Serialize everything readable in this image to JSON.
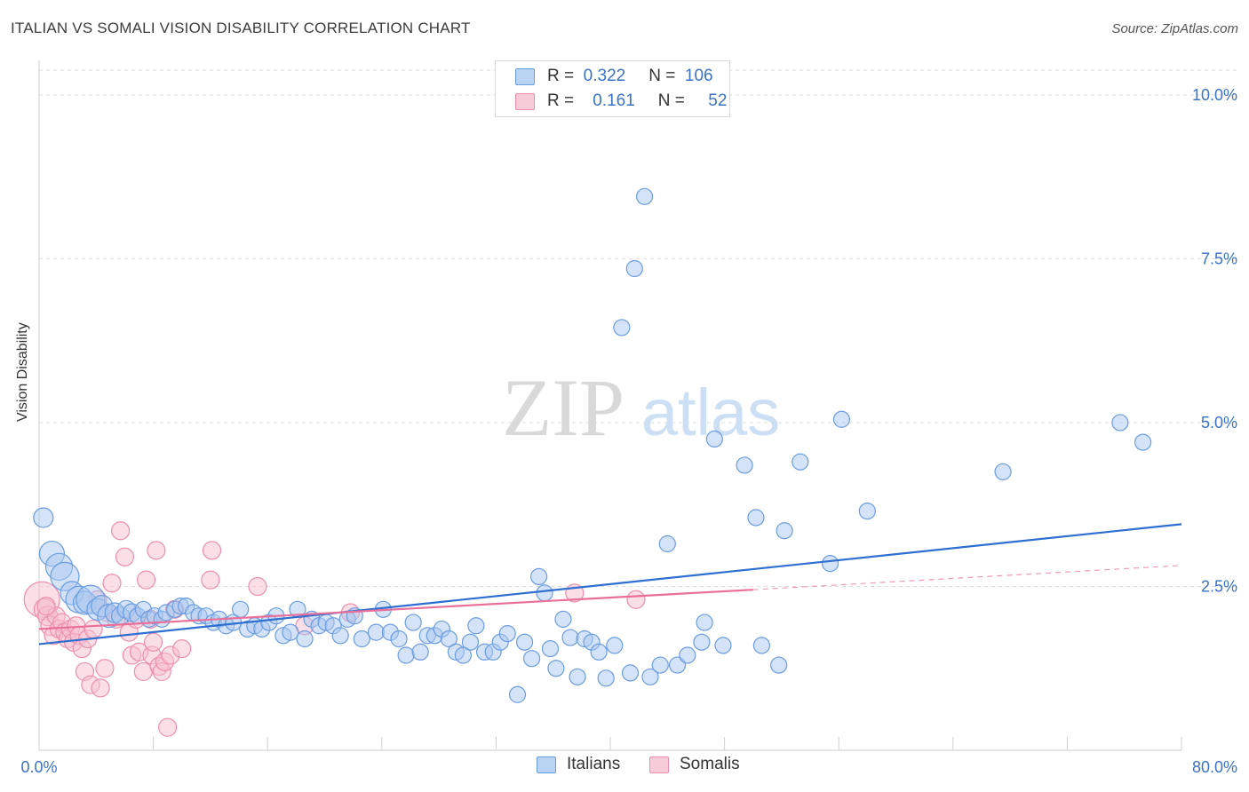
{
  "title": "ITALIAN VS SOMALI VISION DISABILITY CORRELATION CHART",
  "source": "Source: ZipAtlas.com",
  "watermark": {
    "zip": "ZIP",
    "atlas": "atlas"
  },
  "legend_top": [
    {
      "r_label": "R =",
      "r_value": "0.322",
      "n_label": "N =",
      "n_value": "106"
    },
    {
      "r_label": "R =",
      "r_value": "0.161",
      "n_label": "N =",
      "n_value": "52"
    }
  ],
  "legend_bottom": [
    "Italians",
    "Somalis"
  ],
  "colors": {
    "blue_fill": "#a9c8f0",
    "blue_stroke": "#6b9de0",
    "blue_line": "#2f6fd0",
    "pink_fill": "#f6bfd0",
    "pink_stroke": "#ec8fae",
    "pink_line": "#e8709a",
    "axis_text": "#3a73c6",
    "grid": "#dedede"
  },
  "chart_data": {
    "type": "scatter",
    "title": "ITALIAN VS SOMALI VISION DISABILITY CORRELATION CHART",
    "xlabel": "",
    "ylabel": "Vision Disability",
    "xlim": [
      0,
      80
    ],
    "ylim": [
      0,
      10.5
    ],
    "x_tick_labels": [
      "0.0%",
      "80.0%"
    ],
    "y_ticks": [
      2.5,
      5.0,
      7.5,
      10.0
    ],
    "y_tick_labels": [
      "2.5%",
      "5.0%",
      "7.5%",
      "10.0%"
    ],
    "grid": "horizontal dashed",
    "series": [
      {
        "name": "Italians",
        "trend": {
          "x": [
            0,
            80
          ],
          "y": [
            1.62,
            3.45
          ]
        },
        "points": [
          [
            0.3,
            3.55
          ],
          [
            0.9,
            3.0
          ],
          [
            1.4,
            2.8
          ],
          [
            1.8,
            2.65
          ],
          [
            2.3,
            2.4
          ],
          [
            2.8,
            2.3
          ],
          [
            3.2,
            2.25
          ],
          [
            3.6,
            2.3
          ],
          [
            4.1,
            2.15
          ],
          [
            4.4,
            2.2
          ],
          [
            4.9,
            2.05
          ],
          [
            5.3,
            2.1
          ],
          [
            5.7,
            2.05
          ],
          [
            6.1,
            2.15
          ],
          [
            6.5,
            2.1
          ],
          [
            6.9,
            2.05
          ],
          [
            7.3,
            2.15
          ],
          [
            7.7,
            2.0
          ],
          [
            8.1,
            2.05
          ],
          [
            8.6,
            2.0
          ],
          [
            8.9,
            2.1
          ],
          [
            9.5,
            2.15
          ],
          [
            9.9,
            2.2
          ],
          [
            10.3,
            2.2
          ],
          [
            10.8,
            2.1
          ],
          [
            11.2,
            2.05
          ],
          [
            11.7,
            2.05
          ],
          [
            12.2,
            1.95
          ],
          [
            12.6,
            2.0
          ],
          [
            13.1,
            1.9
          ],
          [
            13.6,
            1.95
          ],
          [
            14.1,
            2.15
          ],
          [
            14.6,
            1.85
          ],
          [
            15.1,
            1.9
          ],
          [
            15.6,
            1.85
          ],
          [
            16.1,
            1.95
          ],
          [
            16.6,
            2.05
          ],
          [
            17.1,
            1.75
          ],
          [
            17.6,
            1.8
          ],
          [
            18.1,
            2.15
          ],
          [
            18.6,
            1.7
          ],
          [
            19.1,
            2.0
          ],
          [
            19.6,
            1.9
          ],
          [
            20.1,
            1.95
          ],
          [
            20.6,
            1.9
          ],
          [
            21.1,
            1.75
          ],
          [
            21.6,
            2.0
          ],
          [
            22.1,
            2.05
          ],
          [
            22.6,
            1.7
          ],
          [
            23.6,
            1.8
          ],
          [
            24.1,
            2.15
          ],
          [
            24.6,
            1.8
          ],
          [
            25.2,
            1.7
          ],
          [
            25.7,
            1.45
          ],
          [
            26.2,
            1.95
          ],
          [
            26.7,
            1.5
          ],
          [
            27.2,
            1.75
          ],
          [
            27.7,
            1.75
          ],
          [
            28.2,
            1.85
          ],
          [
            28.7,
            1.7
          ],
          [
            29.2,
            1.5
          ],
          [
            29.7,
            1.45
          ],
          [
            30.2,
            1.65
          ],
          [
            30.6,
            1.9
          ],
          [
            31.2,
            1.5
          ],
          [
            31.8,
            1.5
          ],
          [
            32.3,
            1.65
          ],
          [
            32.8,
            1.78
          ],
          [
            33.5,
            0.85
          ],
          [
            34.0,
            1.65
          ],
          [
            34.5,
            1.4
          ],
          [
            35.0,
            2.65
          ],
          [
            35.4,
            2.4
          ],
          [
            35.8,
            1.55
          ],
          [
            36.2,
            1.25
          ],
          [
            36.7,
            2.0
          ],
          [
            37.2,
            1.72
          ],
          [
            37.7,
            1.12
          ],
          [
            38.2,
            1.7
          ],
          [
            38.7,
            1.65
          ],
          [
            39.2,
            1.5
          ],
          [
            39.7,
            1.1
          ],
          [
            40.3,
            1.6
          ],
          [
            40.8,
            6.45
          ],
          [
            41.4,
            1.18
          ],
          [
            41.7,
            7.35
          ],
          [
            42.8,
            1.12
          ],
          [
            43.5,
            1.3
          ],
          [
            44.0,
            3.15
          ],
          [
            44.7,
            1.3
          ],
          [
            45.4,
            1.45
          ],
          [
            46.6,
            1.95
          ],
          [
            47.3,
            4.75
          ],
          [
            46.4,
            1.65
          ],
          [
            47.9,
            1.6
          ],
          [
            49.4,
            4.35
          ],
          [
            50.2,
            3.55
          ],
          [
            50.6,
            1.6
          ],
          [
            51.8,
            1.3
          ],
          [
            52.2,
            3.35
          ],
          [
            53.3,
            4.4
          ],
          [
            55.4,
            2.85
          ],
          [
            56.2,
            5.05
          ],
          [
            58.0,
            3.65
          ],
          [
            67.5,
            4.25
          ],
          [
            75.7,
            5.0
          ],
          [
            77.3,
            4.7
          ],
          [
            42.4,
            8.45
          ]
        ],
        "sizes": [
          11,
          14,
          15,
          16,
          13,
          15,
          13,
          16,
          12,
          12,
          13,
          11,
          10,
          10,
          10,
          9,
          9,
          9,
          9,
          9,
          9,
          9,
          9,
          9,
          9,
          9,
          9,
          9,
          9,
          9,
          9,
          9,
          9,
          9,
          9,
          9,
          9,
          9,
          9,
          9,
          9,
          9,
          9,
          9,
          9,
          9,
          9,
          9,
          9,
          9,
          9,
          9,
          9,
          9,
          9,
          9,
          9,
          9,
          9,
          9,
          9,
          9,
          9,
          9,
          9,
          9,
          9,
          9,
          9,
          9,
          9,
          9,
          9,
          9,
          9,
          9,
          9,
          9,
          9,
          9,
          9,
          9,
          9,
          9,
          9,
          9,
          9,
          9,
          9,
          9,
          9,
          9,
          9,
          9,
          9,
          9,
          9,
          9,
          9,
          9,
          9,
          9,
          9,
          9,
          9,
          9
        ]
      },
      {
        "name": "Somalis",
        "trend": {
          "x": [
            0,
            50
          ],
          "y": [
            1.85,
            2.45
          ]
        },
        "trend_extension": {
          "x": [
            50,
            80
          ],
          "y": [
            2.45,
            2.82
          ]
        },
        "points": [
          [
            0.2,
            2.3
          ],
          [
            0.4,
            2.15
          ],
          [
            0.6,
            2.05
          ],
          [
            0.8,
            1.9
          ],
          [
            1.0,
            1.75
          ],
          [
            1.2,
            2.05
          ],
          [
            1.4,
            1.85
          ],
          [
            1.6,
            1.95
          ],
          [
            1.8,
            1.8
          ],
          [
            2.0,
            1.7
          ],
          [
            2.2,
            1.85
          ],
          [
            2.4,
            1.65
          ],
          [
            2.6,
            1.9
          ],
          [
            2.8,
            1.75
          ],
          [
            3.0,
            1.55
          ],
          [
            3.2,
            1.2
          ],
          [
            3.4,
            1.7
          ],
          [
            3.6,
            1.0
          ],
          [
            3.8,
            1.85
          ],
          [
            4.1,
            2.3
          ],
          [
            4.3,
            0.95
          ],
          [
            4.6,
            1.25
          ],
          [
            4.8,
            2.1
          ],
          [
            5.1,
            2.55
          ],
          [
            5.4,
            2.0
          ],
          [
            5.7,
            3.35
          ],
          [
            6.0,
            2.95
          ],
          [
            6.3,
            1.8
          ],
          [
            6.5,
            1.45
          ],
          [
            6.8,
            2.0
          ],
          [
            7.0,
            1.5
          ],
          [
            7.3,
            1.2
          ],
          [
            7.5,
            2.6
          ],
          [
            7.8,
            2.0
          ],
          [
            7.9,
            1.45
          ],
          [
            8.0,
            1.65
          ],
          [
            8.2,
            3.05
          ],
          [
            8.4,
            1.28
          ],
          [
            8.6,
            1.2
          ],
          [
            8.8,
            1.35
          ],
          [
            9.0,
            0.35
          ],
          [
            9.2,
            1.45
          ],
          [
            9.5,
            2.15
          ],
          [
            10.0,
            1.55
          ],
          [
            12.1,
            3.05
          ],
          [
            12.0,
            2.6
          ],
          [
            15.3,
            2.5
          ],
          [
            18.6,
            1.9
          ],
          [
            21.8,
            2.1
          ],
          [
            37.5,
            2.4
          ],
          [
            41.8,
            2.3
          ],
          [
            0.5,
            2.2
          ]
        ],
        "sizes": [
          20,
          12,
          11,
          11,
          10,
          10,
          10,
          10,
          10,
          10,
          10,
          10,
          10,
          10,
          10,
          10,
          10,
          10,
          10,
          10,
          10,
          10,
          10,
          10,
          10,
          10,
          10,
          10,
          10,
          10,
          10,
          10,
          10,
          10,
          10,
          10,
          10,
          10,
          10,
          10,
          10,
          10,
          10,
          10,
          10,
          10,
          10,
          10,
          10,
          10,
          10,
          10
        ]
      }
    ]
  }
}
